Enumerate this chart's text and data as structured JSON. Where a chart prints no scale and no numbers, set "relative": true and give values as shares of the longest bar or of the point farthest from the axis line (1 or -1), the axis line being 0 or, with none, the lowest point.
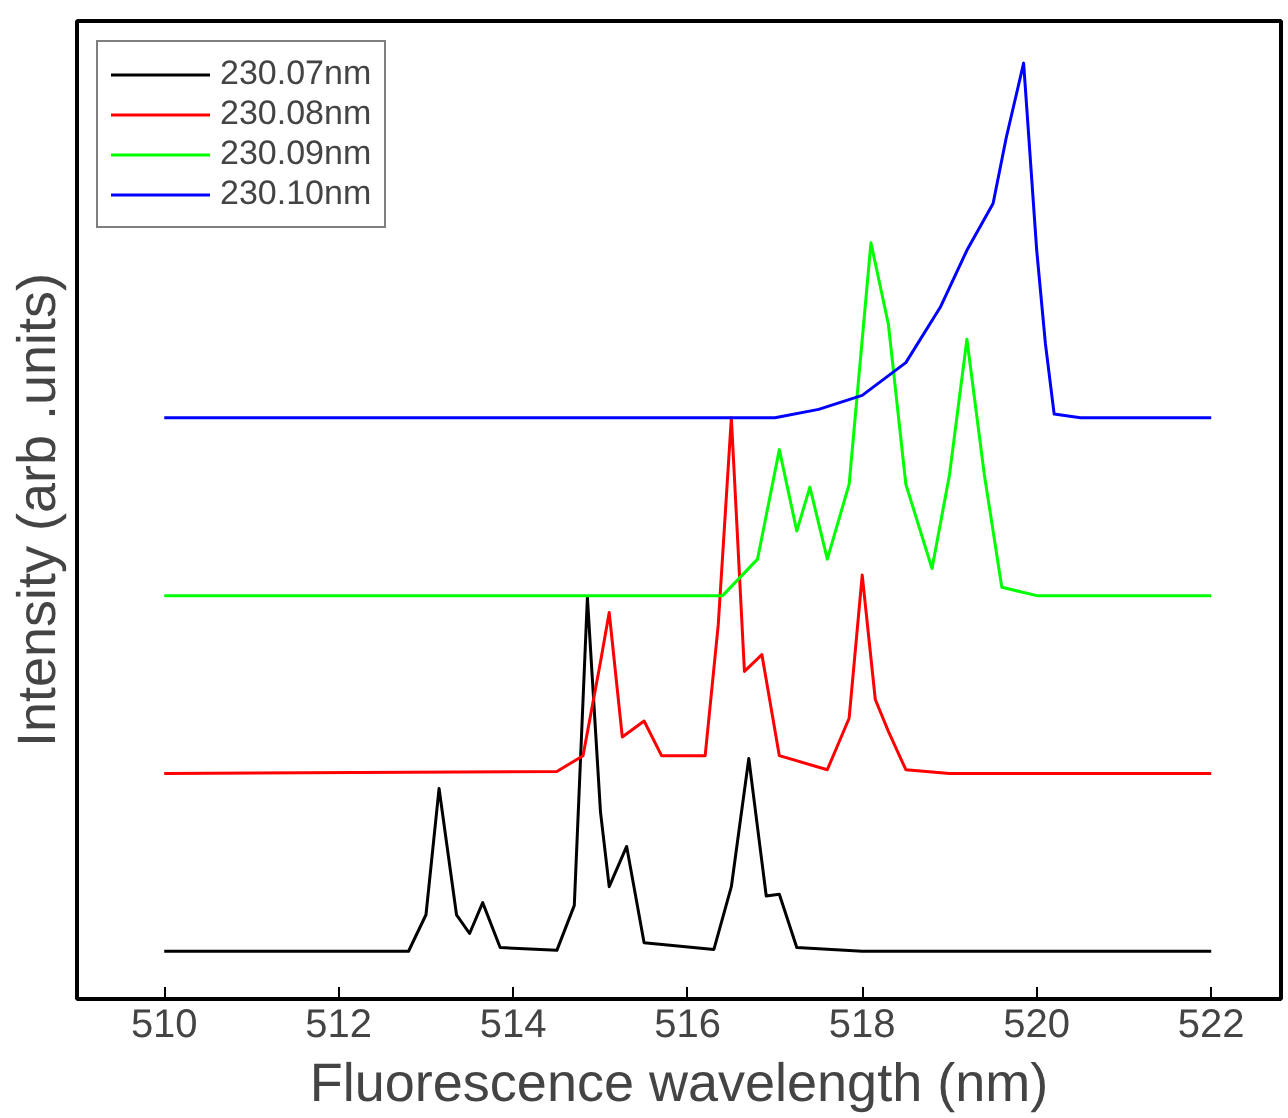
{
  "chart_data": {
    "type": "line",
    "relative": true,
    "xlabel": "Fluorescence wavelength (nm)",
    "ylabel": "Intensity (arb .units)",
    "xlim": [
      509.0,
      522.8
    ],
    "xticks": [
      510,
      512,
      514,
      516,
      518,
      520,
      522
    ],
    "grid": false,
    "legend": "top left",
    "marker": "none",
    "line_style": "solid",
    "series": [
      {
        "name": "230.07nm",
        "color": "#000000",
        "x": [
          510,
          512.8,
          513.0,
          513.15,
          513.35,
          513.5,
          513.65,
          513.85,
          514.5,
          514.7,
          514.85,
          515.0,
          515.1,
          515.3,
          515.5,
          516.3,
          516.5,
          516.7,
          516.9,
          517.05,
          517.25,
          518,
          522
        ],
        "values": [
          0.051,
          0.051,
          0.09,
          0.225,
          0.09,
          0.07,
          0.103,
          0.055,
          0.052,
          0.1,
          0.429,
          0.2,
          0.12,
          0.163,
          0.06,
          0.053,
          0.12,
          0.257,
          0.11,
          0.112,
          0.055,
          0.051,
          0.051
        ]
      },
      {
        "name": "230.08nm",
        "color": "#ff0000",
        "x": [
          510,
          514.5,
          514.8,
          515.0,
          515.1,
          515.25,
          515.5,
          515.7,
          516.2,
          516.35,
          516.5,
          516.65,
          516.85,
          517.05,
          517.6,
          517.85,
          518.0,
          518.15,
          518.3,
          518.5,
          519,
          522
        ],
        "values": [
          0.241,
          0.243,
          0.26,
          0.36,
          0.413,
          0.28,
          0.297,
          0.26,
          0.26,
          0.4,
          0.621,
          0.35,
          0.368,
          0.26,
          0.245,
          0.3,
          0.453,
          0.32,
          0.286,
          0.245,
          0.241,
          0.241
        ]
      },
      {
        "name": "230.09nm",
        "color": "#00ff00",
        "x": [
          510,
          516.4,
          516.8,
          517.05,
          517.25,
          517.4,
          517.6,
          517.85,
          518.1,
          518.3,
          518.5,
          518.8,
          519.0,
          519.2,
          519.4,
          519.6,
          520,
          522
        ],
        "values": [
          0.431,
          0.431,
          0.47,
          0.587,
          0.5,
          0.547,
          0.47,
          0.55,
          0.808,
          0.721,
          0.55,
          0.46,
          0.56,
          0.705,
          0.56,
          0.44,
          0.431,
          0.431
        ]
      },
      {
        "name": "230.10nm",
        "color": "#0000ff",
        "x": [
          510,
          517,
          517.5,
          518.0,
          518.5,
          518.9,
          519.2,
          519.5,
          519.65,
          519.85,
          520.0,
          520.1,
          520.2,
          520.5,
          522
        ],
        "values": [
          0.621,
          0.621,
          0.63,
          0.645,
          0.68,
          0.74,
          0.8,
          0.85,
          0.92,
          1,
          0.8,
          0.7,
          0.625,
          0.621,
          0.621
        ]
      }
    ]
  }
}
